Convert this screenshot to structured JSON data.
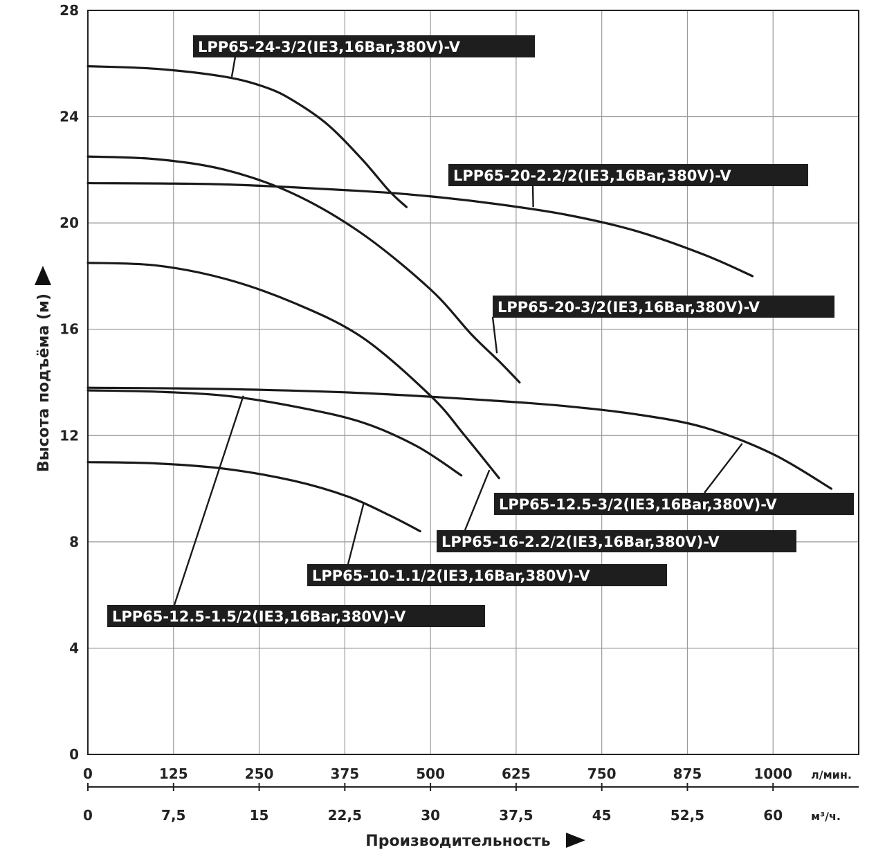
{
  "chart_data": {
    "type": "line",
    "title": "",
    "ylabel": "Высота подъёма (м)",
    "xlabel": "Производительность",
    "x_unit_primary": "л/мин.",
    "x_unit_secondary": "м³/ч.",
    "xlim": [
      0,
      1125
    ],
    "ylim": [
      0,
      28
    ],
    "grid": true,
    "x_ticks": [
      "0",
      "125",
      "250",
      "375",
      "500",
      "625",
      "750",
      "875",
      "1000"
    ],
    "x2_ticks": [
      "0",
      "7,5",
      "15",
      "22,5",
      "30",
      "37,5",
      "45",
      "52,5",
      "60"
    ],
    "y_ticks": [
      "0",
      "4",
      "8",
      "12",
      "16",
      "20",
      "24",
      "28"
    ],
    "series": [
      {
        "name": "LPP65-24-3/2(IE3,16Bar,380V)-V",
        "x": [
          0,
          100,
          200,
          260,
          300,
          350,
          400,
          440,
          465
        ],
        "y": [
          25.9,
          25.8,
          25.5,
          25.1,
          24.6,
          23.7,
          22.4,
          21.2,
          20.6
        ]
      },
      {
        "name": "LPP65-20-2.2/2(IE3,16Bar,380V)-V",
        "x": [
          0,
          200,
          400,
          500,
          600,
          700,
          800,
          900,
          970
        ],
        "y": [
          21.5,
          21.45,
          21.2,
          21.0,
          20.7,
          20.3,
          19.7,
          18.8,
          18.0
        ]
      },
      {
        "name": "LPP65-20-3/2(IE3,16Bar,380V)-V",
        "x": [
          0,
          100,
          200,
          300,
          400,
          500,
          560,
          600,
          630
        ],
        "y": [
          22.5,
          22.4,
          22.0,
          21.1,
          19.6,
          17.5,
          15.8,
          14.8,
          14.0
        ]
      },
      {
        "name": "LPP65-16-2.2/2(IE3,16Bar,380V)-V",
        "x": [
          0,
          100,
          200,
          300,
          400,
          500,
          550,
          600
        ],
        "y": [
          18.5,
          18.4,
          17.9,
          17.0,
          15.7,
          13.5,
          12.0,
          10.4
        ]
      },
      {
        "name": "LPP65-12.5-3/2(IE3,16Bar,380V)-V",
        "x": [
          0,
          200,
          400,
          600,
          700,
          800,
          900,
          1000,
          1085
        ],
        "y": [
          13.8,
          13.75,
          13.6,
          13.3,
          13.1,
          12.8,
          12.3,
          11.3,
          10.0
        ]
      },
      {
        "name": "LPP65-12.5-1.5/2(IE3,16Bar,380V)-V",
        "x": [
          0,
          100,
          200,
          300,
          400,
          480,
          545
        ],
        "y": [
          13.7,
          13.65,
          13.5,
          13.1,
          12.5,
          11.6,
          10.5
        ]
      },
      {
        "name": "LPP65-10-1.1/2(IE3,16Bar,380V)-V",
        "x": [
          0,
          100,
          200,
          300,
          380,
          440,
          485
        ],
        "y": [
          11.0,
          10.95,
          10.75,
          10.3,
          9.7,
          9.0,
          8.4
        ]
      }
    ],
    "labels": [
      {
        "series": 0,
        "text": "LPP65-24-3/2(IE3,16Bar,380V)-V",
        "anchor_x": 210,
        "anchor_y": 25.5
      },
      {
        "series": 1,
        "text": "LPP65-20-2.2/2(IE3,16Bar,380V)-V",
        "anchor_x": 650,
        "anchor_y": 20.6
      },
      {
        "series": 2,
        "text": "LPP65-20-3/2(IE3,16Bar,380V)-V",
        "anchor_x": 597,
        "anchor_y": 15.1
      },
      {
        "series": 3,
        "text": "LPP65-16-2.2/2(IE3,16Bar,380V)-V",
        "anchor_x": 586,
        "anchor_y": 10.7
      },
      {
        "series": 4,
        "text": "LPP65-12.5-3/2(IE3,16Bar,380V)-V",
        "anchor_x": 955,
        "anchor_y": 11.7
      },
      {
        "series": 5,
        "text": "LPP65-12.5-1.5/2(IE3,16Bar,380V)-V",
        "anchor_x": 227,
        "anchor_y": 13.5
      },
      {
        "series": 6,
        "text": "LPP65-10-1.1/2(IE3,16Bar,380V)-V",
        "anchor_x": 403,
        "anchor_y": 9.5
      }
    ]
  }
}
